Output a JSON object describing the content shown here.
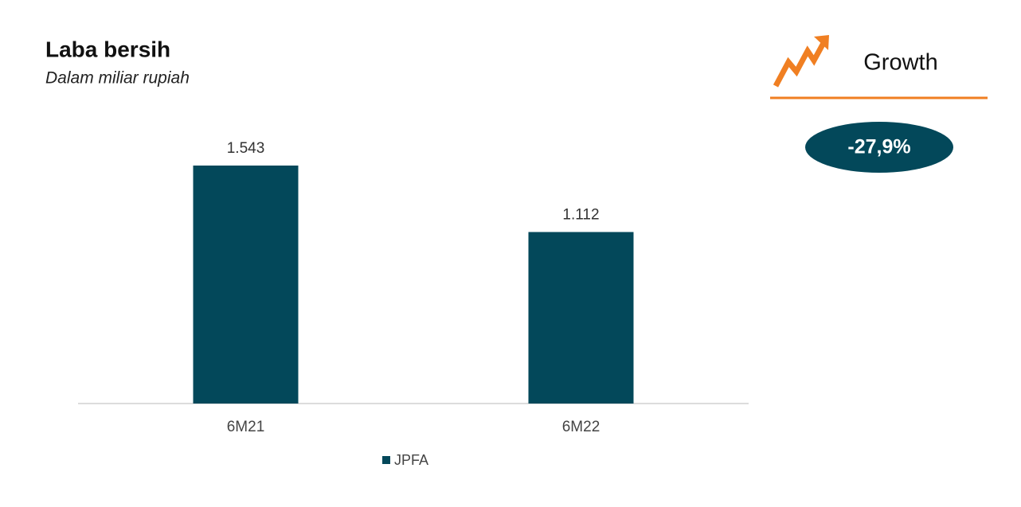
{
  "chart_data": {
    "type": "bar",
    "title": "Laba bersih",
    "subtitle": "Dalam  miliar rupiah",
    "categories": [
      "6M21",
      "6M22"
    ],
    "series": [
      {
        "name": "JPFA",
        "color": "#03485a",
        "values": [
          1543,
          1112
        ],
        "value_labels": [
          "1.543",
          "1.112"
        ]
      }
    ],
    "annotation": {
      "label": "Growth",
      "text": "-27,9%"
    }
  }
}
